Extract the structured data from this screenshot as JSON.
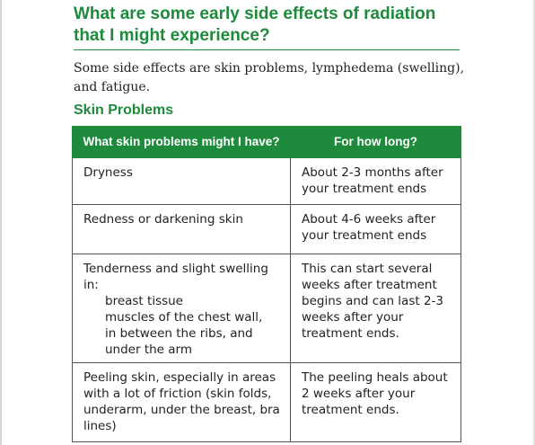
{
  "heading": "What are some early side effects of radiation that I might experience?",
  "intro": "Some side effects are skin problems, lymphedema (swelling), and fatigue.",
  "subheading": "Skin Problems",
  "table": {
    "headers": [
      "What skin problems might I have?",
      "For how long?"
    ],
    "rows": [
      {
        "problem": "Dryness",
        "problem_items": [],
        "duration": "About 2-3 months after your treatment ends"
      },
      {
        "problem": "Redness or darkening skin",
        "problem_items": [],
        "duration": "About 4-6 weeks after your treatment ends"
      },
      {
        "problem": "Tenderness and slight swelling in:",
        "problem_items": [
          "breast tissue",
          "muscles of the chest wall,",
          "in between the ribs, and",
          "under the arm"
        ],
        "duration": "This can start several weeks after treatment begins and can last 2-3 weeks after your treatment ends."
      },
      {
        "problem": "Peeling skin, especially in areas with a lot of friction (skin folds, underarm, under the breast, bra lines)",
        "problem_items": [],
        "duration": "The peeling heals about 2 weeks after your treatment ends."
      }
    ]
  },
  "colors": {
    "accent": "#1e8a3c",
    "text": "#222222"
  }
}
